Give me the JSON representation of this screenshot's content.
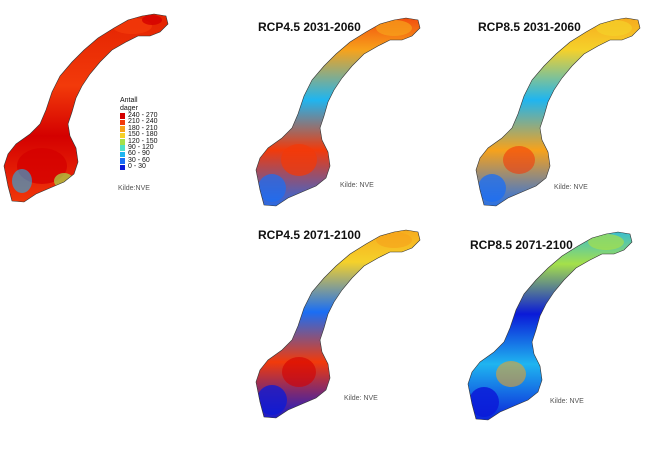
{
  "legend": {
    "title_line1": "Antall",
    "title_line2": "dager",
    "items": [
      {
        "label": "240 - 270",
        "color": "#d40000"
      },
      {
        "label": "210 - 240",
        "color": "#f23a0a"
      },
      {
        "label": "180 - 210",
        "color": "#f7a21b"
      },
      {
        "label": "150 - 180",
        "color": "#f5d12a"
      },
      {
        "label": "120 - 150",
        "color": "#a5e04a"
      },
      {
        "label": "90 - 120",
        "color": "#4fe0c8"
      },
      {
        "label": "60 - 90",
        "color": "#1fb5f0"
      },
      {
        "label": "30 - 60",
        "color": "#1a6ef5"
      },
      {
        "label": "0 - 30",
        "color": "#0a1ad8"
      }
    ]
  },
  "panels": [
    {
      "title": "",
      "source": "Kilde:NVE"
    },
    {
      "title": "RCP4.5 2031-2060",
      "source": "Kilde: NVE"
    },
    {
      "title": "RCP8.5 2031-2060",
      "source": "Kilde: NVE"
    },
    {
      "title": "RCP4.5 2071-2100",
      "source": "Kilde: NVE"
    },
    {
      "title": "RCP8.5 2071-2100",
      "source": "Kilde: NVE"
    }
  ]
}
